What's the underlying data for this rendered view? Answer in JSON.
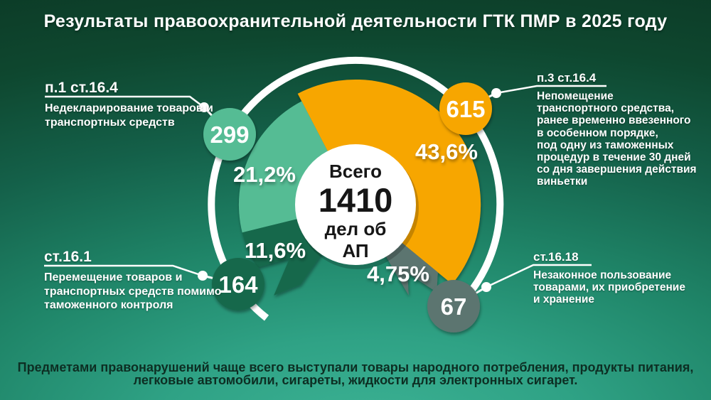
{
  "title": "Результаты правоохранительной деятельности ГТК ПМР в 2025 году",
  "chart_data": {
    "type": "pie",
    "title": "Результаты правоохранительной деятельности ГТК ПМР в 2025 году",
    "total": 1410,
    "center": {
      "word_total": "Всего",
      "value": "1410",
      "unit_line1": "дел об",
      "unit_line2": "АП"
    },
    "start_angle": -27.5,
    "gap_pct": 18.85,
    "direction": "clockwise",
    "legend": "callouts",
    "segments": [
      {
        "article": "п.3 ст.16.4",
        "description": "Непомещение\nтранспортного средства,\nранее временно ввезенного\nв особенном порядке,\nпод одну из таможенных\nпроцедур в течение 30 дней\nсо дня завершения действия\nвиньетки",
        "count": 615,
        "pct": 43.6,
        "pct_label": "43,6%",
        "color": "#F7A600"
      },
      {
        "article": "п.1 ст.16.4",
        "description": "Недекларирование товаров и\nтранспортных средств",
        "count": 299,
        "pct": 21.2,
        "pct_label": "21,2%",
        "color": "#55BC94"
      },
      {
        "article": "ст.16.1",
        "description": "Перемещение товаров и\nтранспортных средств помимо\nтаможенного контроля",
        "count": 164,
        "pct": 11.6,
        "pct_label": "11,6%",
        "color": "#17684C"
      },
      {
        "article": "ст.16.18",
        "description": "Незаконное пользование\nтоварами, их приобретение\nи хранение",
        "count": 67,
        "pct": 4.75,
        "pct_label": "4,75%",
        "color": "#5C7470"
      }
    ]
  },
  "footer": {
    "line1": "Предметами правонарушений чаще всего выступали товары народного потребления, продукты питания,",
    "line2": "легковые автомобили, сигареты, жидкости для электронных сигарет."
  },
  "colors": {
    "ring": "#FFFFFF",
    "center_circle": "#FFFFFF",
    "center_text": "#161616",
    "background_top": "#0C3A26",
    "background_bottom": "#3CB294",
    "footer_text": "#0D2E23"
  }
}
